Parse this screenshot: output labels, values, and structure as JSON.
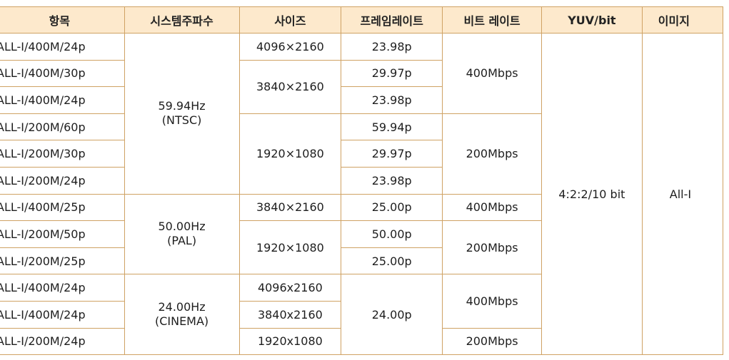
{
  "headers": {
    "item": "항목",
    "system_freq": "시스템주파수",
    "size": "사이즈",
    "frame_rate": "프레임레이트",
    "bit_rate": "비트 레이트",
    "yuv_bit": "YUV/bit",
    "image": "이미지"
  },
  "rows": [
    {
      "item": "ALL-I/400M/24p"
    },
    {
      "item": "ALL-I/400M/30p"
    },
    {
      "item": "ALL-I/400M/24p"
    },
    {
      "item": "ALL-I/200M/60p"
    },
    {
      "item": "ALL-I/200M/30p"
    },
    {
      "item": "ALL-I/200M/24p"
    },
    {
      "item": "ALL-I/400M/25p"
    },
    {
      "item": "ALL-I/200M/50p"
    },
    {
      "item": "ALL-I/200M/25p"
    },
    {
      "item": "ALL-I/400M/24p"
    },
    {
      "item": "ALL-I/400M/24p"
    },
    {
      "item": "ALL-I/200M/24p"
    }
  ],
  "system_freq": [
    {
      "value": "59.94Hz",
      "sub": "(NTSC)"
    },
    {
      "value": "50.00Hz",
      "sub": "(PAL)"
    },
    {
      "value": "24.00Hz",
      "sub": "(CINEMA)"
    }
  ],
  "sizes": [
    "4096×2160",
    "3840×2160",
    "1920×1080",
    "3840×2160",
    "1920×1080",
    "4096x2160",
    "3840x2160",
    "1920x1080"
  ],
  "frame_rates": [
    "23.98p",
    "29.97p",
    "23.98p",
    "59.94p",
    "29.97p",
    "23.98p",
    "25.00p",
    "50.00p",
    "25.00p",
    "24.00p"
  ],
  "bit_rates": [
    "400Mbps",
    "200Mbps",
    "400Mbps",
    "200Mbps",
    "400Mbps",
    "200Mbps"
  ],
  "yuv_bit": "4:2:2/10 bit",
  "image": "All-I"
}
